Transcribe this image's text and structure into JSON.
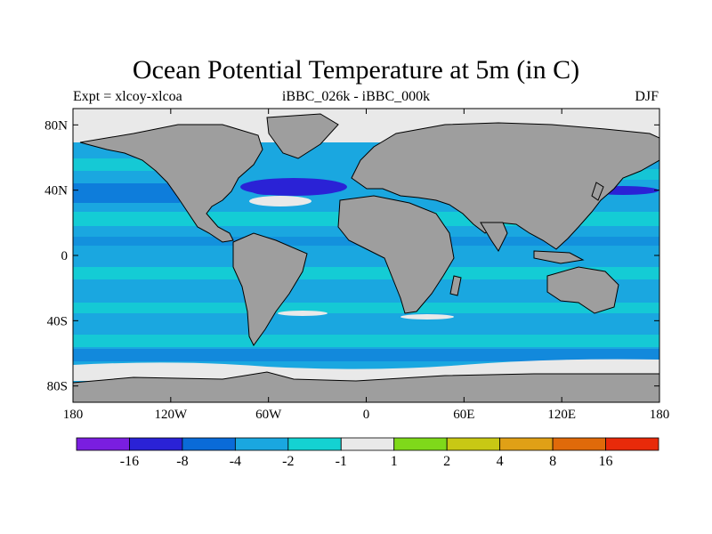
{
  "title": "Ocean Potential Temperature at 5m (in C)",
  "subtitle_left": "Expt = xlcoy-xlcoa",
  "subtitle_center": "iBBC_026k - iBBC_000k",
  "subtitle_right": "DJF",
  "map": {
    "projection": "cylindrical-equidistant",
    "lon_range": [
      -180,
      180
    ],
    "lat_range": [
      -90,
      90
    ],
    "lat_ticks": [
      "80N",
      "40N",
      "0",
      "40S",
      "80S"
    ],
    "lon_ticks": [
      "180",
      "120W",
      "60W",
      "0",
      "60E",
      "120E",
      "180"
    ],
    "land_color": "#9e9e9e"
  },
  "colorbar": {
    "labels": [
      "-16",
      "-8",
      "-4",
      "-2",
      "-1",
      "1",
      "2",
      "4",
      "8",
      "16"
    ],
    "colors": [
      "#7a1ee0",
      "#2a22d6",
      "#0a6bd8",
      "#1aa7e0",
      "#14d2d2",
      "#e9e9e9",
      "#7fd91a",
      "#c8c814",
      "#e0a016",
      "#e06a0a",
      "#e82a0a"
    ]
  }
}
